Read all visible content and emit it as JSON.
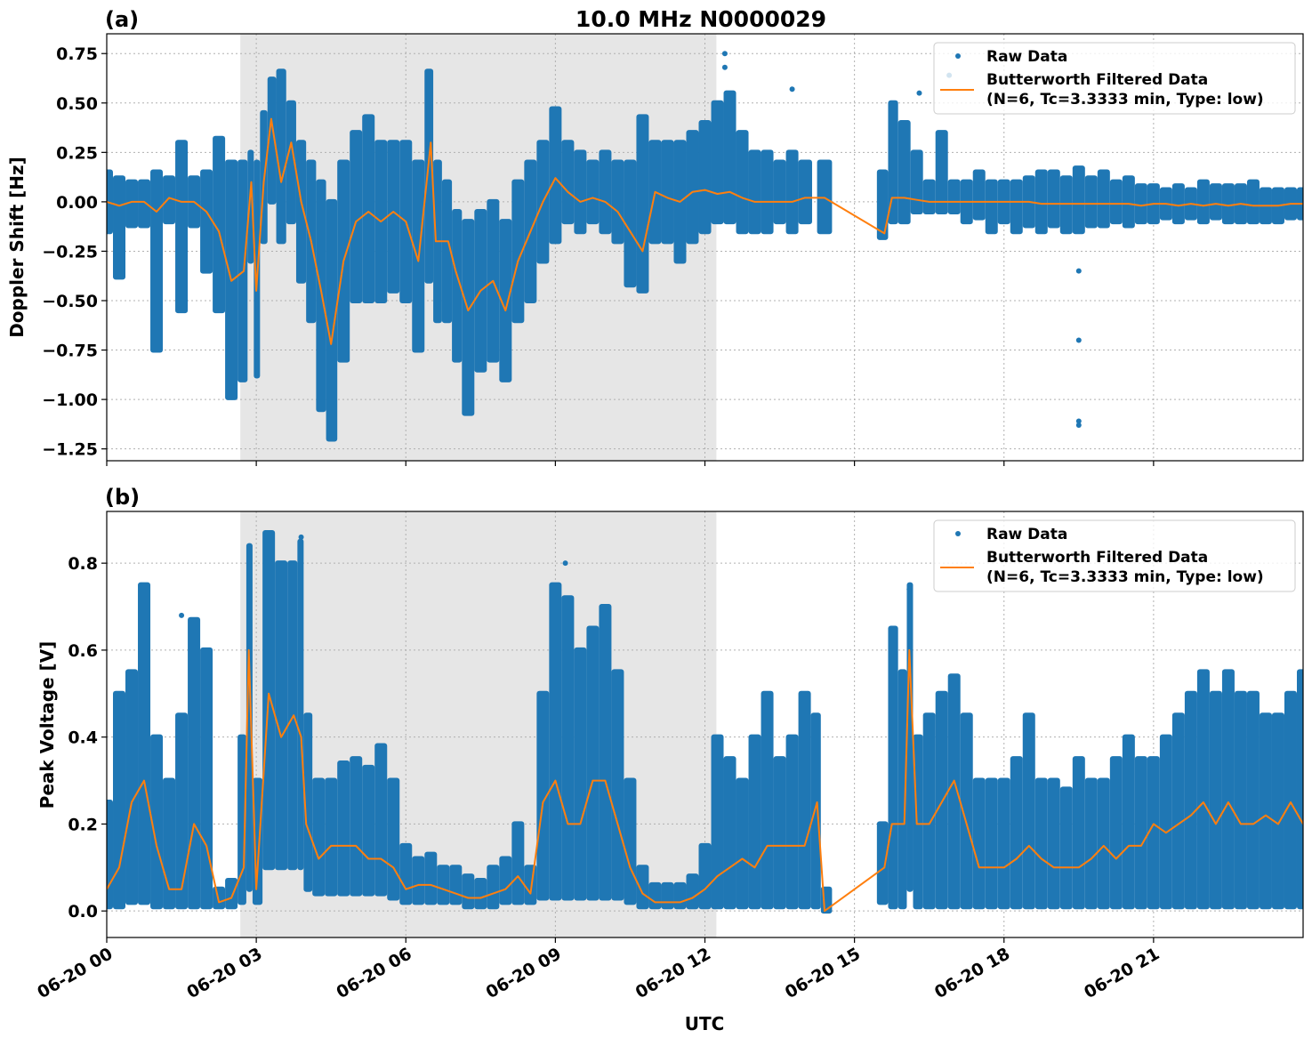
{
  "chart_data": [
    {
      "type": "scatter",
      "panel_label": "(a)",
      "title": "10.0 MHz N0000029",
      "xlabel": "",
      "ylabel": "Doppler Shift [Hz]",
      "xlim_hours": [
        0,
        24
      ],
      "ylim": [
        -1.31,
        0.85
      ],
      "yticks": [
        -1.25,
        -1.0,
        -0.75,
        -0.5,
        -0.25,
        0.0,
        0.25,
        0.5,
        0.75
      ],
      "ytick_labels": [
        "−1.25",
        "−1.00",
        "−0.75",
        "−0.50",
        "−0.25",
        "0.00",
        "0.25",
        "0.50",
        "0.75"
      ],
      "grid": true,
      "shaded_interval_hours": [
        2.68,
        12.23
      ],
      "legend": {
        "position": "top-right",
        "entries": [
          "Raw Data",
          "Butterworth Filtered Data",
          "(N=6, Tc=3.3333 min, Type: low)"
        ]
      },
      "series_columns": [
        "hour",
        "filtered",
        "raw_low",
        "raw_high"
      ],
      "series": [
        [
          0,
          0.0,
          -0.15,
          0.15
        ],
        [
          0.25,
          -0.02,
          -0.38,
          0.12
        ],
        [
          0.5,
          0.0,
          -0.12,
          0.1
        ],
        [
          0.75,
          0.0,
          -0.12,
          0.1
        ],
        [
          1.0,
          -0.05,
          -0.75,
          0.15
        ],
        [
          1.25,
          0.02,
          -0.1,
          0.12
        ],
        [
          1.5,
          0.0,
          -0.55,
          0.3
        ],
        [
          1.75,
          0.0,
          -0.12,
          0.12
        ],
        [
          2.0,
          -0.05,
          -0.35,
          0.15
        ],
        [
          2.25,
          -0.15,
          -0.55,
          0.32
        ],
        [
          2.5,
          -0.4,
          -0.99,
          0.2
        ],
        [
          2.75,
          -0.35,
          -0.9,
          0.2
        ],
        [
          2.9,
          0.1,
          -0.3,
          0.25
        ],
        [
          3.0,
          -0.45,
          -0.88,
          0.2
        ],
        [
          3.15,
          0.1,
          -0.2,
          0.45
        ],
        [
          3.3,
          0.42,
          0.0,
          0.62
        ],
        [
          3.5,
          0.1,
          -0.2,
          0.66
        ],
        [
          3.7,
          0.3,
          -0.1,
          0.5
        ],
        [
          3.9,
          0.0,
          -0.4,
          0.3
        ],
        [
          4.1,
          -0.2,
          -0.6,
          0.2
        ],
        [
          4.3,
          -0.45,
          -1.05,
          0.1
        ],
        [
          4.5,
          -0.72,
          -1.2,
          0.0
        ],
        [
          4.75,
          -0.3,
          -0.8,
          0.2
        ],
        [
          5.0,
          -0.1,
          -0.5,
          0.35
        ],
        [
          5.25,
          -0.05,
          -0.5,
          0.43
        ],
        [
          5.5,
          -0.1,
          -0.5,
          0.3
        ],
        [
          5.75,
          -0.05,
          -0.45,
          0.3
        ],
        [
          6.0,
          -0.1,
          -0.5,
          0.3
        ],
        [
          6.25,
          -0.3,
          -0.75,
          0.2
        ],
        [
          6.5,
          0.3,
          -0.4,
          0.66
        ],
        [
          6.6,
          -0.2,
          -0.6,
          0.2
        ],
        [
          6.85,
          -0.2,
          -0.6,
          0.1
        ],
        [
          7.0,
          -0.35,
          -0.8,
          -0.05
        ],
        [
          7.25,
          -0.55,
          -1.07,
          -0.1
        ],
        [
          7.5,
          -0.45,
          -0.85,
          -0.05
        ],
        [
          7.75,
          -0.4,
          -0.8,
          0.0
        ],
        [
          8.0,
          -0.55,
          -0.9,
          -0.1
        ],
        [
          8.25,
          -0.3,
          -0.6,
          0.1
        ],
        [
          8.5,
          -0.15,
          -0.5,
          0.2
        ],
        [
          8.75,
          0.0,
          -0.3,
          0.3
        ],
        [
          9.0,
          0.12,
          -0.2,
          0.47
        ],
        [
          9.25,
          0.05,
          -0.1,
          0.3
        ],
        [
          9.5,
          0.0,
          -0.15,
          0.25
        ],
        [
          9.75,
          0.02,
          -0.1,
          0.2
        ],
        [
          10.0,
          0.0,
          -0.15,
          0.25
        ],
        [
          10.25,
          -0.05,
          -0.2,
          0.2
        ],
        [
          10.5,
          -0.15,
          -0.42,
          0.2
        ],
        [
          10.75,
          -0.25,
          -0.45,
          0.43
        ],
        [
          11.0,
          0.05,
          -0.2,
          0.3
        ],
        [
          11.25,
          0.02,
          -0.2,
          0.3
        ],
        [
          11.5,
          0.0,
          -0.3,
          0.3
        ],
        [
          11.75,
          0.05,
          -0.2,
          0.35
        ],
        [
          12.0,
          0.06,
          -0.15,
          0.4
        ],
        [
          12.25,
          0.04,
          -0.1,
          0.5
        ],
        [
          12.5,
          0.05,
          -0.1,
          0.55
        ],
        [
          12.75,
          0.02,
          -0.15,
          0.35
        ],
        [
          13.0,
          0.0,
          -0.15,
          0.25
        ],
        [
          13.25,
          0.0,
          -0.15,
          0.25
        ],
        [
          13.5,
          0.0,
          -0.1,
          0.2
        ],
        [
          13.75,
          0.0,
          -0.15,
          0.25
        ],
        [
          14.0,
          0.02,
          -0.1,
          0.2
        ],
        [
          14.4,
          0.02,
          -0.15,
          0.2
        ],
        [
          15.6,
          -0.16,
          -0.18,
          0.15
        ],
        [
          15.75,
          0.02,
          -0.1,
          0.5
        ],
        [
          16.0,
          0.02,
          -0.1,
          0.4
        ],
        [
          16.25,
          0.01,
          -0.05,
          0.25
        ],
        [
          16.5,
          0.0,
          -0.05,
          0.1
        ],
        [
          16.75,
          0.0,
          -0.05,
          0.35
        ],
        [
          17.0,
          0.0,
          -0.05,
          0.1
        ],
        [
          17.25,
          0.0,
          -0.1,
          0.1
        ],
        [
          17.5,
          0.0,
          -0.08,
          0.15
        ],
        [
          17.75,
          0.0,
          -0.15,
          0.1
        ],
        [
          18.0,
          0.0,
          -0.1,
          0.1
        ],
        [
          18.25,
          0.0,
          -0.15,
          0.1
        ],
        [
          18.5,
          0.0,
          -0.12,
          0.12
        ],
        [
          18.75,
          -0.01,
          -0.15,
          0.15
        ],
        [
          19.0,
          -0.01,
          -0.12,
          0.15
        ],
        [
          19.25,
          -0.01,
          -0.15,
          0.12
        ],
        [
          19.5,
          -0.01,
          -0.15,
          0.17
        ],
        [
          19.75,
          -0.01,
          -0.12,
          0.12
        ],
        [
          20.0,
          -0.01,
          -0.12,
          0.15
        ],
        [
          20.25,
          -0.01,
          -0.1,
          0.1
        ],
        [
          20.5,
          -0.01,
          -0.12,
          0.12
        ],
        [
          20.75,
          -0.02,
          -0.1,
          0.08
        ],
        [
          21.0,
          -0.01,
          -0.1,
          0.08
        ],
        [
          21.25,
          -0.01,
          -0.08,
          0.06
        ],
        [
          21.5,
          -0.02,
          -0.1,
          0.08
        ],
        [
          21.75,
          -0.01,
          -0.08,
          0.06
        ],
        [
          22.0,
          -0.02,
          -0.1,
          0.1
        ],
        [
          22.25,
          -0.01,
          -0.08,
          0.08
        ],
        [
          22.5,
          -0.02,
          -0.1,
          0.08
        ],
        [
          22.75,
          -0.01,
          -0.1,
          0.08
        ],
        [
          23.0,
          -0.02,
          -0.1,
          0.1
        ],
        [
          23.25,
          -0.02,
          -0.1,
          0.06
        ],
        [
          23.5,
          -0.02,
          -0.1,
          0.06
        ],
        [
          23.75,
          -0.01,
          -0.08,
          0.06
        ],
        [
          24,
          -0.01,
          -0.08,
          0.06
        ]
      ],
      "outliers": [
        [
          12.4,
          0.75
        ],
        [
          12.4,
          0.68
        ],
        [
          16.9,
          0.64
        ],
        [
          16.3,
          0.55
        ],
        [
          13.75,
          0.57
        ],
        [
          19.5,
          -0.35
        ],
        [
          19.5,
          -0.7
        ],
        [
          19.5,
          -1.11
        ],
        [
          19.5,
          -1.13
        ]
      ]
    },
    {
      "type": "scatter",
      "panel_label": "(b)",
      "xlabel": "UTC",
      "ylabel": "Peak Voltage [V]",
      "xlim_hours": [
        0,
        24
      ],
      "ylim": [
        -0.061,
        0.919
      ],
      "yticks": [
        0.0,
        0.2,
        0.4,
        0.6,
        0.8
      ],
      "ytick_labels": [
        "0.0",
        "0.2",
        "0.4",
        "0.6",
        "0.8"
      ],
      "xticks_hours": [
        0,
        3,
        6,
        9,
        12,
        15,
        18,
        21
      ],
      "xtick_labels": [
        "06-20 00",
        "06-20 03",
        "06-20 06",
        "06-20 09",
        "06-20 12",
        "06-20 15",
        "06-20 18",
        "06-20 21"
      ],
      "grid": true,
      "shaded_interval_hours": [
        2.68,
        12.23
      ],
      "legend": {
        "position": "top-right",
        "entries": [
          "Raw Data",
          "Butterworth Filtered Data",
          "(N=6, Tc=3.3333 min, Type: low)"
        ]
      },
      "series_columns": [
        "hour",
        "filtered",
        "raw_low",
        "raw_high"
      ],
      "series": [
        [
          0,
          0.05,
          0.01,
          0.25
        ],
        [
          0.25,
          0.1,
          0.01,
          0.5
        ],
        [
          0.5,
          0.25,
          0.02,
          0.55
        ],
        [
          0.75,
          0.3,
          0.02,
          0.75
        ],
        [
          1.0,
          0.15,
          0.01,
          0.4
        ],
        [
          1.25,
          0.05,
          0.01,
          0.3
        ],
        [
          1.5,
          0.05,
          0.01,
          0.45
        ],
        [
          1.75,
          0.2,
          0.01,
          0.67
        ],
        [
          2.0,
          0.15,
          0.01,
          0.6
        ],
        [
          2.25,
          0.02,
          0.01,
          0.05
        ],
        [
          2.5,
          0.03,
          0.01,
          0.07
        ],
        [
          2.75,
          0.1,
          0.02,
          0.4
        ],
        [
          2.85,
          0.6,
          0.05,
          0.84
        ],
        [
          3.0,
          0.05,
          0.02,
          0.3
        ],
        [
          3.25,
          0.5,
          0.1,
          0.87
        ],
        [
          3.5,
          0.4,
          0.1,
          0.8
        ],
        [
          3.75,
          0.45,
          0.1,
          0.8
        ],
        [
          3.9,
          0.4,
          0.1,
          0.85
        ],
        [
          4.0,
          0.2,
          0.05,
          0.45
        ],
        [
          4.25,
          0.12,
          0.04,
          0.3
        ],
        [
          4.5,
          0.15,
          0.04,
          0.3
        ],
        [
          4.75,
          0.15,
          0.04,
          0.34
        ],
        [
          5.0,
          0.15,
          0.04,
          0.35
        ],
        [
          5.25,
          0.12,
          0.04,
          0.33
        ],
        [
          5.5,
          0.12,
          0.04,
          0.38
        ],
        [
          5.75,
          0.1,
          0.03,
          0.3
        ],
        [
          6.0,
          0.05,
          0.02,
          0.15
        ],
        [
          6.25,
          0.06,
          0.02,
          0.12
        ],
        [
          6.5,
          0.06,
          0.02,
          0.13
        ],
        [
          6.75,
          0.05,
          0.02,
          0.1
        ],
        [
          7.0,
          0.04,
          0.02,
          0.1
        ],
        [
          7.25,
          0.03,
          0.01,
          0.08
        ],
        [
          7.5,
          0.03,
          0.01,
          0.07
        ],
        [
          7.75,
          0.04,
          0.01,
          0.1
        ],
        [
          8.0,
          0.05,
          0.02,
          0.12
        ],
        [
          8.25,
          0.08,
          0.02,
          0.2
        ],
        [
          8.5,
          0.04,
          0.02,
          0.1
        ],
        [
          8.75,
          0.25,
          0.03,
          0.5
        ],
        [
          9.0,
          0.3,
          0.03,
          0.75
        ],
        [
          9.25,
          0.2,
          0.03,
          0.72
        ],
        [
          9.5,
          0.2,
          0.03,
          0.6
        ],
        [
          9.75,
          0.3,
          0.03,
          0.65
        ],
        [
          10.0,
          0.3,
          0.03,
          0.7
        ],
        [
          10.25,
          0.2,
          0.03,
          0.55
        ],
        [
          10.5,
          0.1,
          0.02,
          0.3
        ],
        [
          10.75,
          0.04,
          0.01,
          0.1
        ],
        [
          11.0,
          0.02,
          0.01,
          0.06
        ],
        [
          11.25,
          0.02,
          0.01,
          0.06
        ],
        [
          11.5,
          0.02,
          0.01,
          0.06
        ],
        [
          11.75,
          0.03,
          0.01,
          0.08
        ],
        [
          12.0,
          0.05,
          0.01,
          0.15
        ],
        [
          12.25,
          0.08,
          0.01,
          0.4
        ],
        [
          12.5,
          0.1,
          0.01,
          0.35
        ],
        [
          12.75,
          0.12,
          0.01,
          0.3
        ],
        [
          13.0,
          0.1,
          0.01,
          0.4
        ],
        [
          13.25,
          0.15,
          0.01,
          0.5
        ],
        [
          13.5,
          0.15,
          0.01,
          0.35
        ],
        [
          13.75,
          0.15,
          0.01,
          0.4
        ],
        [
          14.0,
          0.15,
          0.01,
          0.5
        ],
        [
          14.25,
          0.25,
          0.01,
          0.45
        ],
        [
          14.4,
          0.0,
          0.0,
          0.05
        ],
        [
          15.6,
          0.1,
          0.02,
          0.2
        ],
        [
          15.75,
          0.2,
          0.01,
          0.65
        ],
        [
          16.0,
          0.2,
          0.01,
          0.55
        ],
        [
          16.1,
          0.6,
          0.05,
          0.75
        ],
        [
          16.25,
          0.2,
          0.01,
          0.4
        ],
        [
          16.5,
          0.2,
          0.01,
          0.45
        ],
        [
          16.75,
          0.25,
          0.01,
          0.5
        ],
        [
          17.0,
          0.3,
          0.01,
          0.54
        ],
        [
          17.25,
          0.2,
          0.01,
          0.45
        ],
        [
          17.5,
          0.1,
          0.01,
          0.3
        ],
        [
          17.75,
          0.1,
          0.01,
          0.3
        ],
        [
          18.0,
          0.1,
          0.01,
          0.3
        ],
        [
          18.25,
          0.12,
          0.01,
          0.35
        ],
        [
          18.5,
          0.15,
          0.01,
          0.45
        ],
        [
          18.75,
          0.12,
          0.01,
          0.3
        ],
        [
          19.0,
          0.1,
          0.01,
          0.3
        ],
        [
          19.25,
          0.1,
          0.01,
          0.28
        ],
        [
          19.5,
          0.1,
          0.01,
          0.35
        ],
        [
          19.75,
          0.12,
          0.01,
          0.3
        ],
        [
          20.0,
          0.15,
          0.01,
          0.3
        ],
        [
          20.25,
          0.12,
          0.01,
          0.35
        ],
        [
          20.5,
          0.15,
          0.01,
          0.4
        ],
        [
          20.75,
          0.15,
          0.01,
          0.35
        ],
        [
          21.0,
          0.2,
          0.01,
          0.35
        ],
        [
          21.25,
          0.18,
          0.01,
          0.4
        ],
        [
          21.5,
          0.2,
          0.01,
          0.45
        ],
        [
          21.75,
          0.22,
          0.01,
          0.5
        ],
        [
          22.0,
          0.25,
          0.01,
          0.55
        ],
        [
          22.25,
          0.2,
          0.01,
          0.5
        ],
        [
          22.5,
          0.25,
          0.01,
          0.55
        ],
        [
          22.75,
          0.2,
          0.01,
          0.5
        ],
        [
          23.0,
          0.2,
          0.01,
          0.5
        ],
        [
          23.25,
          0.22,
          0.01,
          0.45
        ],
        [
          23.5,
          0.2,
          0.01,
          0.45
        ],
        [
          23.75,
          0.25,
          0.01,
          0.5
        ],
        [
          24,
          0.2,
          0.01,
          0.55
        ]
      ],
      "outliers": [
        [
          1.5,
          0.68
        ],
        [
          3.9,
          0.86
        ],
        [
          9.2,
          0.8
        ],
        [
          16.1,
          0.74
        ]
      ]
    }
  ],
  "colors": {
    "raw": "#1f77b4",
    "filtered": "#ff7f0e",
    "shade": "#e6e6e6",
    "grid": "#b0b0b0"
  }
}
